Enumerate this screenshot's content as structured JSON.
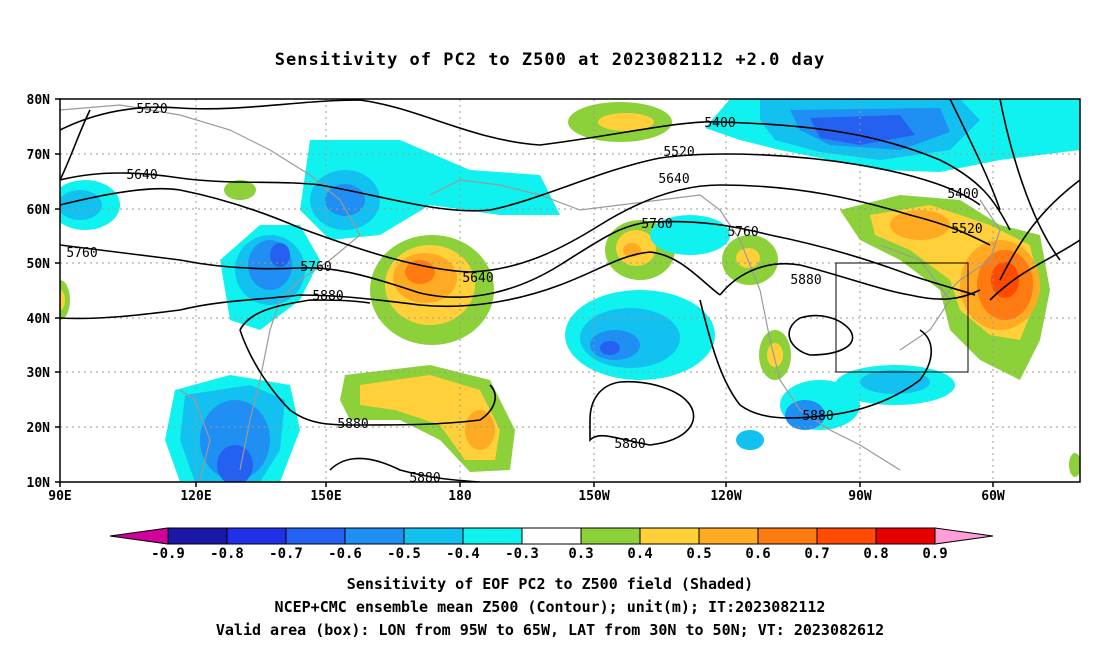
{
  "title": "Sensitivity of PC2 to Z500 at 2023082112 +2.0 day",
  "lat_labels": [
    "80N",
    "70N",
    "60N",
    "50N",
    "40N",
    "30N",
    "20N",
    "10N"
  ],
  "lon_labels": [
    "90E",
    "120E",
    "150E",
    "180",
    "150W",
    "120W",
    "90W",
    "60W"
  ],
  "contour_labels": [
    "5520",
    "5400",
    "5520",
    "5640",
    "5400",
    "5640",
    "5520",
    "5760",
    "5760",
    "5760",
    "5640",
    "5760",
    "5880",
    "5880",
    "5880",
    "5880",
    "5880",
    "5880"
  ],
  "colorbar": {
    "labels": [
      "-0.9",
      "-0.8",
      "-0.7",
      "-0.6",
      "-0.5",
      "-0.4",
      "-0.3",
      "0.3",
      "0.4",
      "0.5",
      "0.6",
      "0.7",
      "0.8",
      "0.9"
    ],
    "colors": [
      "#1a18a6",
      "#2030e6",
      "#2461f0",
      "#1f8ff3",
      "#12c1f0",
      "#10f2f0",
      "#ffffff",
      "#8cd03a",
      "#ffd03a",
      "#ffaa22",
      "#ff7a10",
      "#ff4a00",
      "#e80000"
    ],
    "low_end": "#d0009a",
    "high_end": "#ff9ed8"
  },
  "valid_box": {
    "lon": [
      "95W",
      "65W"
    ],
    "lat": [
      "30N",
      "50N"
    ]
  },
  "captions": [
    "Sensitivity of EOF PC2 to Z500 field (Shaded)",
    "NCEP+CMC ensemble mean Z500 (Contour); unit(m); IT:2023082112",
    "Valid area (box): LON from 95W to 65W, LAT from 30N to 50N; VT: 2023082612"
  ]
}
